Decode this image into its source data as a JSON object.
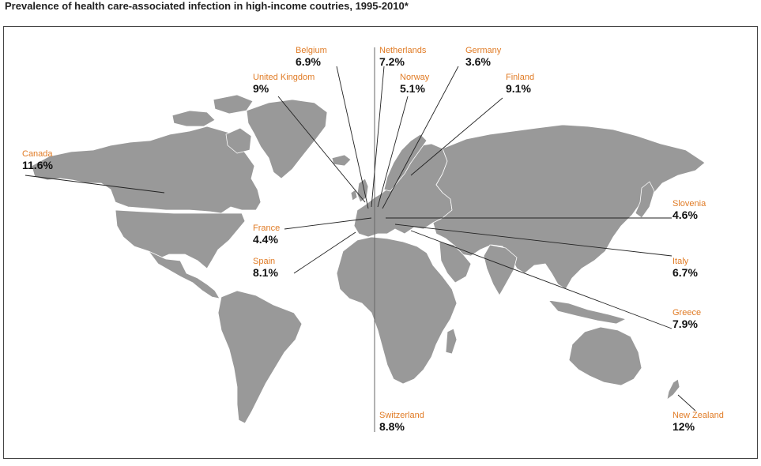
{
  "title": "Prevalence of health care-associated infection in high-income coutries, 1995-2010*",
  "colors": {
    "accent": "#e07b25",
    "land": "#999999",
    "border": "#ffffff",
    "line": "#222222"
  },
  "countries": [
    {
      "id": "belgium",
      "name": "Belgium",
      "value": "6.9%"
    },
    {
      "id": "netherlands",
      "name": "Netherlands",
      "value": "7.2%"
    },
    {
      "id": "germany",
      "name": "Germany",
      "value": "3.6%"
    },
    {
      "id": "uk",
      "name": "United Kingdom",
      "value": "9%"
    },
    {
      "id": "norway",
      "name": "Norway",
      "value": "5.1%"
    },
    {
      "id": "finland",
      "name": "Finland",
      "value": "9.1%"
    },
    {
      "id": "canada",
      "name": "Canada",
      "value": "11.6%"
    },
    {
      "id": "slovenia",
      "name": "Slovenia",
      "value": "4.6%"
    },
    {
      "id": "france",
      "name": "France",
      "value": "4.4%"
    },
    {
      "id": "spain",
      "name": "Spain",
      "value": "8.1%"
    },
    {
      "id": "italy",
      "name": "Italy",
      "value": "6.7%"
    },
    {
      "id": "greece",
      "name": "Greece",
      "value": "7.9%"
    },
    {
      "id": "switzerland",
      "name": "Switzerland",
      "value": "8.8%"
    },
    {
      "id": "newzealand",
      "name": "New Zealand",
      "value": "12%"
    }
  ]
}
